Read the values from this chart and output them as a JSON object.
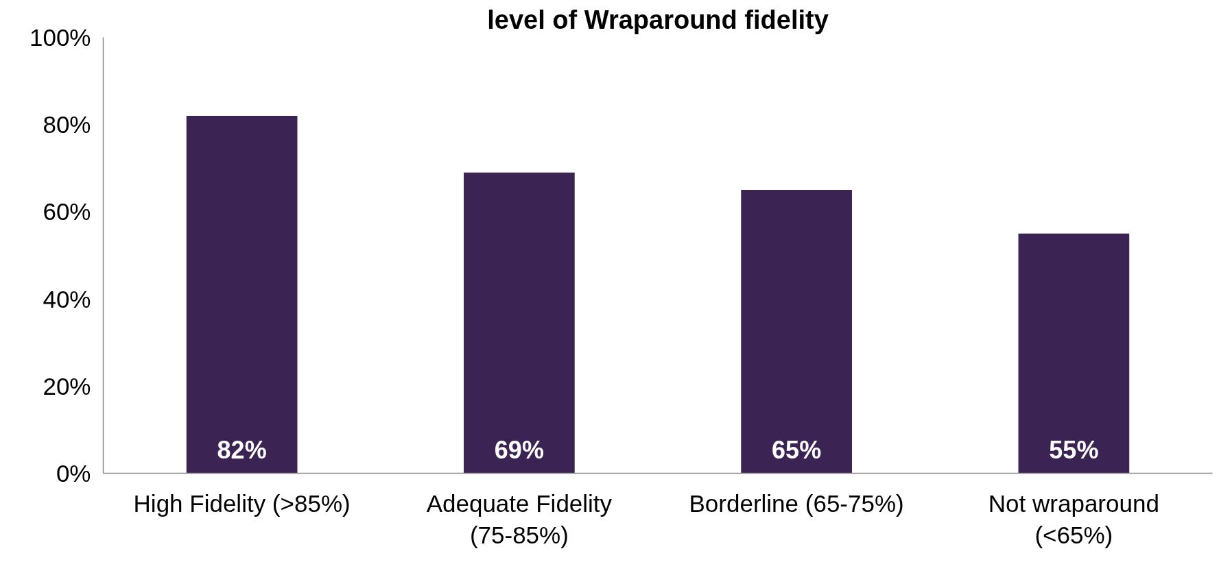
{
  "chart_data": {
    "type": "bar",
    "title": "level of Wraparound fidelity",
    "categories": [
      "High Fidelity (>85%)",
      "Adequate Fidelity (75-85%)",
      "Borderline (65-75%)",
      "Not wraparound (<65%)"
    ],
    "values": [
      82,
      69,
      65,
      55
    ],
    "color": "#3b2353",
    "value_labels": [
      "82%",
      "69%",
      "65%",
      "55%"
    ],
    "ylim": [
      0,
      100
    ],
    "yticks": [
      {
        "value": 0,
        "label": "0%"
      },
      {
        "value": 20,
        "label": "20%"
      },
      {
        "value": 40,
        "label": "40%"
      },
      {
        "value": 60,
        "label": "60%"
      },
      {
        "value": 80,
        "label": "80%"
      },
      {
        "value": 100,
        "label": "100%"
      }
    ],
    "grid": false
  }
}
